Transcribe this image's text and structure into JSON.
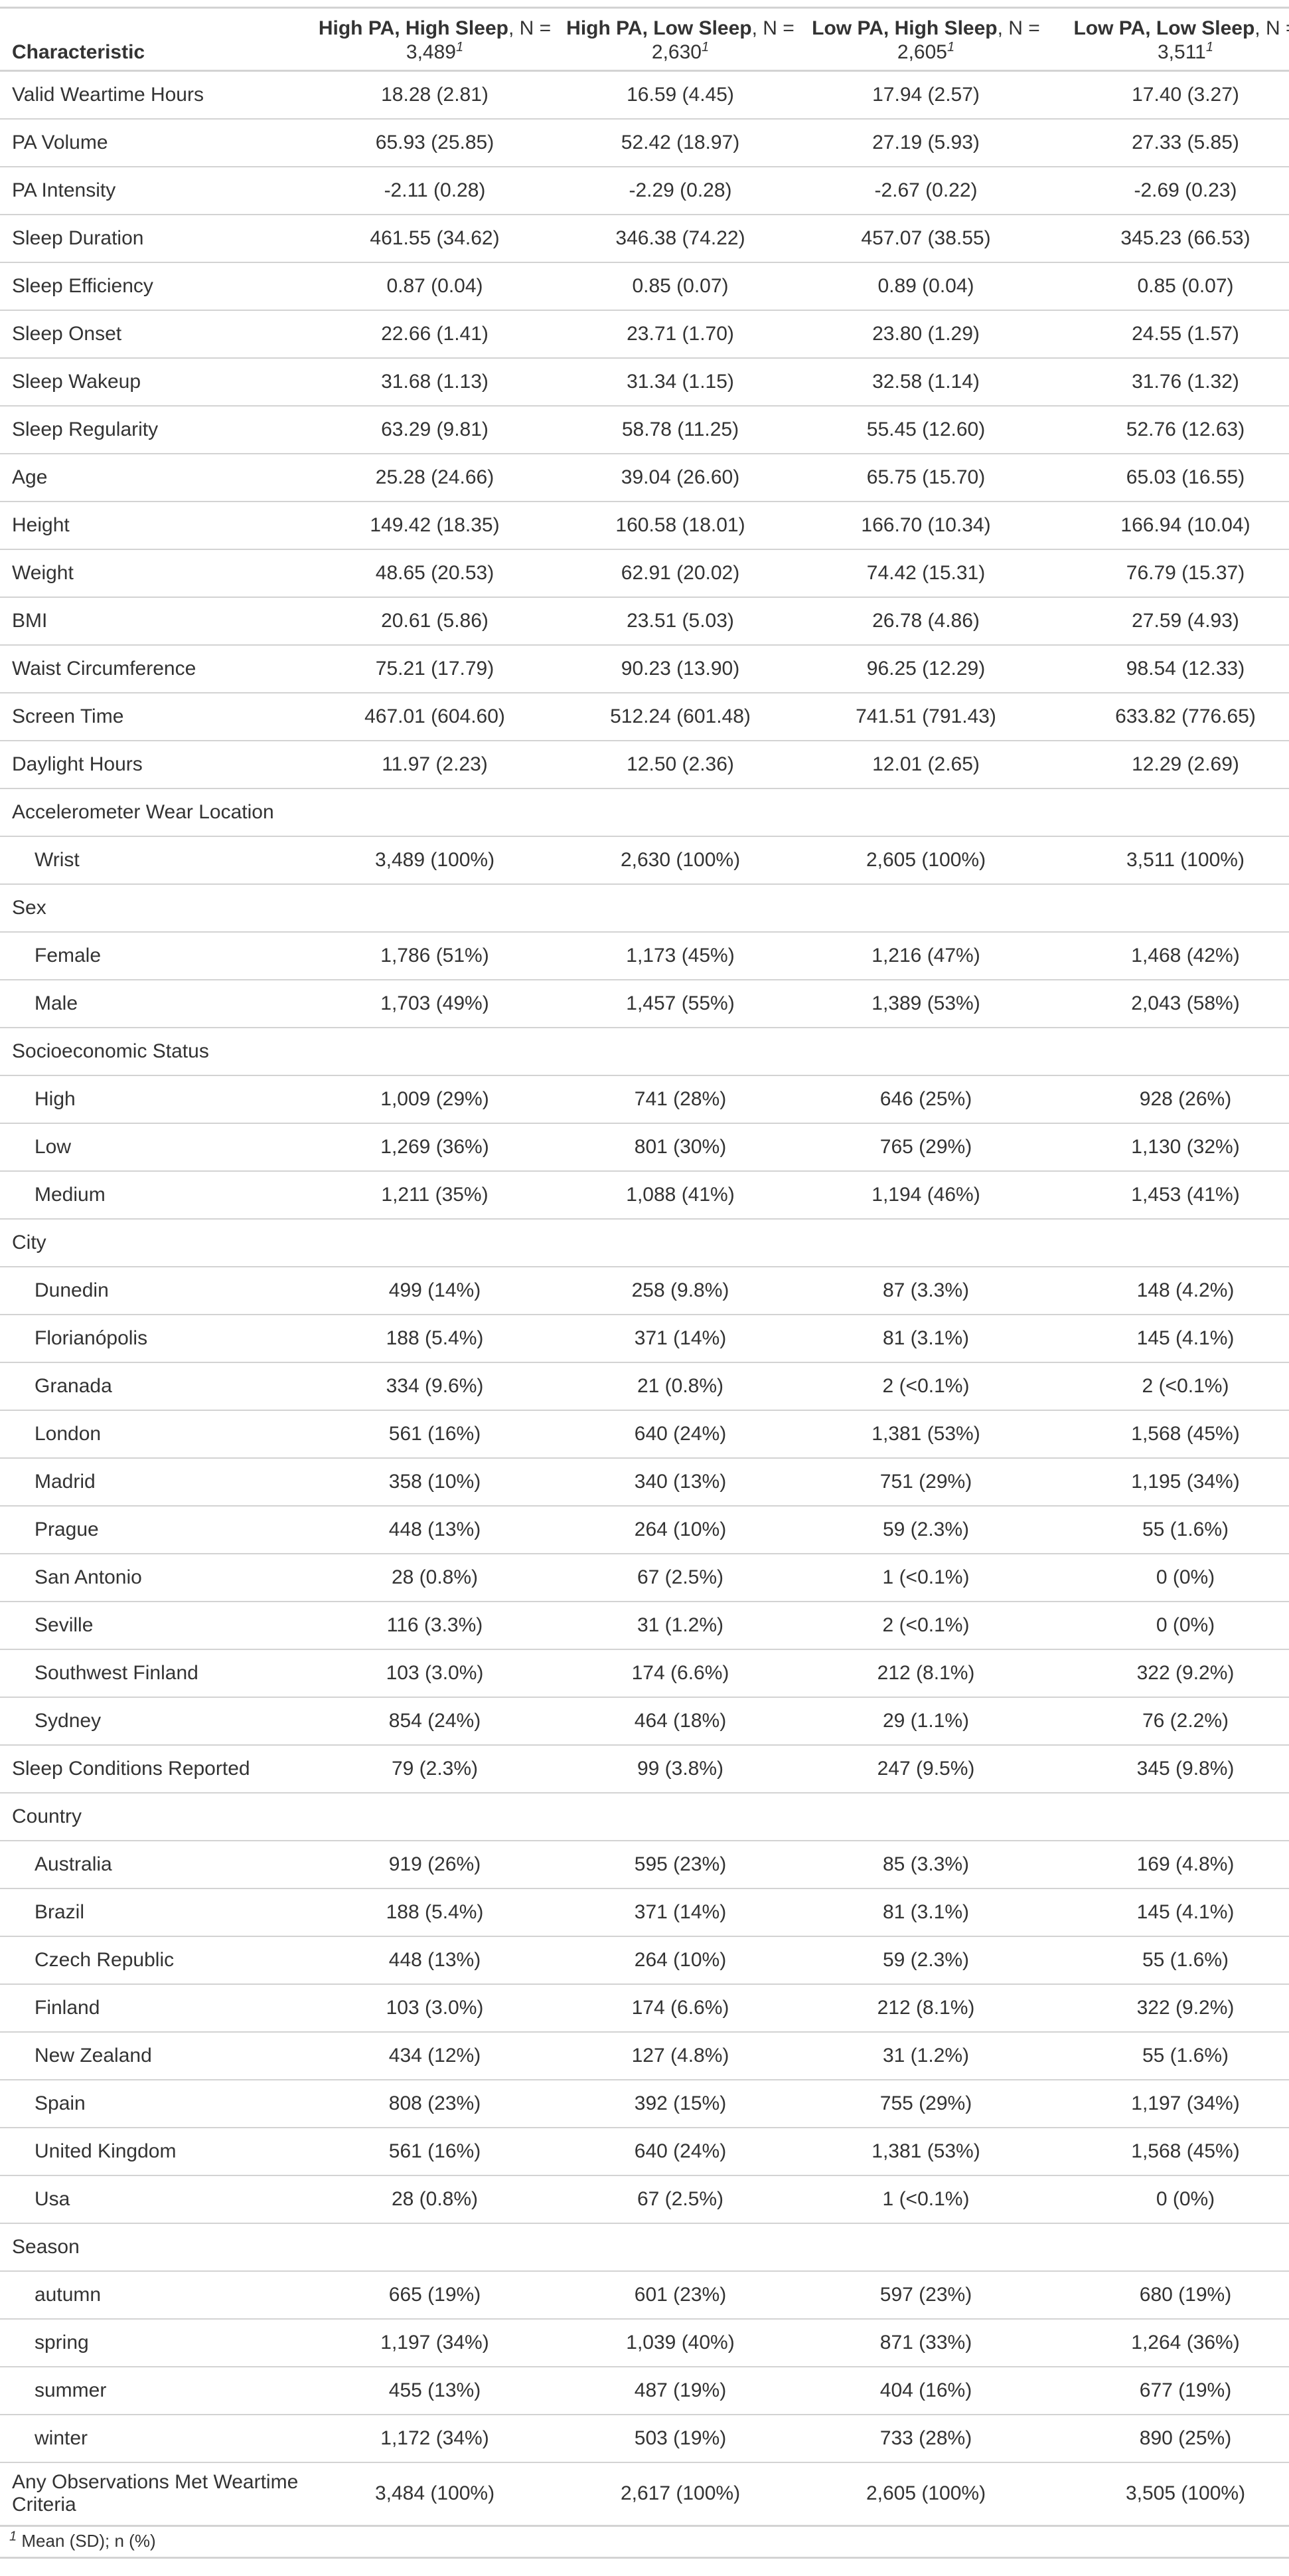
{
  "header": {
    "characteristic": "Characteristic",
    "groups": [
      {
        "label": "High PA, High Sleep",
        "n_text": ", N = 3,489",
        "mark": "1"
      },
      {
        "label": "High PA, Low Sleep",
        "n_text": ", N = 2,630",
        "mark": "1"
      },
      {
        "label": "Low PA, High Sleep",
        "n_text": ", N = 2,605",
        "mark": "1"
      },
      {
        "label": "Low PA, Low Sleep",
        "n_text": ", N = 3,511",
        "mark": "1"
      }
    ]
  },
  "rows": [
    {
      "label": "Valid Weartime Hours",
      "values": [
        "18.28 (2.81)",
        "16.59 (4.45)",
        "17.94 (2.57)",
        "17.40 (3.27)"
      ]
    },
    {
      "label": "PA Volume",
      "values": [
        "65.93 (25.85)",
        "52.42 (18.97)",
        "27.19 (5.93)",
        "27.33 (5.85)"
      ]
    },
    {
      "label": "PA Intensity",
      "values": [
        "-2.11 (0.28)",
        "-2.29 (0.28)",
        "-2.67 (0.22)",
        "-2.69 (0.23)"
      ]
    },
    {
      "label": "Sleep Duration",
      "values": [
        "461.55 (34.62)",
        "346.38 (74.22)",
        "457.07 (38.55)",
        "345.23 (66.53)"
      ]
    },
    {
      "label": "Sleep Efficiency",
      "values": [
        "0.87 (0.04)",
        "0.85 (0.07)",
        "0.89 (0.04)",
        "0.85 (0.07)"
      ]
    },
    {
      "label": "Sleep Onset",
      "values": [
        "22.66 (1.41)",
        "23.71 (1.70)",
        "23.80 (1.29)",
        "24.55 (1.57)"
      ]
    },
    {
      "label": "Sleep Wakeup",
      "values": [
        "31.68 (1.13)",
        "31.34 (1.15)",
        "32.58 (1.14)",
        "31.76 (1.32)"
      ]
    },
    {
      "label": "Sleep Regularity",
      "values": [
        "63.29 (9.81)",
        "58.78 (11.25)",
        "55.45 (12.60)",
        "52.76 (12.63)"
      ]
    },
    {
      "label": "Age",
      "values": [
        "25.28 (24.66)",
        "39.04 (26.60)",
        "65.75 (15.70)",
        "65.03 (16.55)"
      ]
    },
    {
      "label": "Height",
      "values": [
        "149.42 (18.35)",
        "160.58 (18.01)",
        "166.70 (10.34)",
        "166.94 (10.04)"
      ]
    },
    {
      "label": "Weight",
      "values": [
        "48.65 (20.53)",
        "62.91 (20.02)",
        "74.42 (15.31)",
        "76.79 (15.37)"
      ]
    },
    {
      "label": "BMI",
      "values": [
        "20.61 (5.86)",
        "23.51 (5.03)",
        "26.78 (4.86)",
        "27.59 (4.93)"
      ]
    },
    {
      "label": "Waist Circumference",
      "values": [
        "75.21 (17.79)",
        "90.23 (13.90)",
        "96.25 (12.29)",
        "98.54 (12.33)"
      ]
    },
    {
      "label": "Screen Time",
      "values": [
        "467.01 (604.60)",
        "512.24 (601.48)",
        "741.51 (791.43)",
        "633.82 (776.65)"
      ]
    },
    {
      "label": "Daylight Hours",
      "values": [
        "11.97 (2.23)",
        "12.50 (2.36)",
        "12.01 (2.65)",
        "12.29 (2.69)"
      ]
    },
    {
      "label": "Accelerometer Wear Location",
      "values": [
        "",
        "",
        "",
        ""
      ]
    },
    {
      "label": "Wrist",
      "sub": true,
      "values": [
        "3,489 (100%)",
        "2,630 (100%)",
        "2,605 (100%)",
        "3,511 (100%)"
      ]
    },
    {
      "label": "Sex",
      "values": [
        "",
        "",
        "",
        ""
      ]
    },
    {
      "label": "Female",
      "sub": true,
      "values": [
        "1,786 (51%)",
        "1,173 (45%)",
        "1,216 (47%)",
        "1,468 (42%)"
      ]
    },
    {
      "label": "Male",
      "sub": true,
      "values": [
        "1,703 (49%)",
        "1,457 (55%)",
        "1,389 (53%)",
        "2,043 (58%)"
      ]
    },
    {
      "label": "Socioeconomic Status",
      "values": [
        "",
        "",
        "",
        ""
      ]
    },
    {
      "label": "High",
      "sub": true,
      "values": [
        "1,009 (29%)",
        "741 (28%)",
        "646 (25%)",
        "928 (26%)"
      ]
    },
    {
      "label": "Low",
      "sub": true,
      "values": [
        "1,269 (36%)",
        "801 (30%)",
        "765 (29%)",
        "1,130 (32%)"
      ]
    },
    {
      "label": "Medium",
      "sub": true,
      "values": [
        "1,211 (35%)",
        "1,088 (41%)",
        "1,194 (46%)",
        "1,453 (41%)"
      ]
    },
    {
      "label": "City",
      "values": [
        "",
        "",
        "",
        ""
      ]
    },
    {
      "label": "Dunedin",
      "sub": true,
      "values": [
        "499 (14%)",
        "258 (9.8%)",
        "87 (3.3%)",
        "148 (4.2%)"
      ]
    },
    {
      "label": "Florianópolis",
      "sub": true,
      "values": [
        "188 (5.4%)",
        "371 (14%)",
        "81 (3.1%)",
        "145 (4.1%)"
      ]
    },
    {
      "label": "Granada",
      "sub": true,
      "values": [
        "334 (9.6%)",
        "21 (0.8%)",
        "2 (<0.1%)",
        "2 (<0.1%)"
      ]
    },
    {
      "label": "London",
      "sub": true,
      "values": [
        "561 (16%)",
        "640 (24%)",
        "1,381 (53%)",
        "1,568 (45%)"
      ]
    },
    {
      "label": "Madrid",
      "sub": true,
      "values": [
        "358 (10%)",
        "340 (13%)",
        "751 (29%)",
        "1,195 (34%)"
      ]
    },
    {
      "label": "Prague",
      "sub": true,
      "values": [
        "448 (13%)",
        "264 (10%)",
        "59 (2.3%)",
        "55 (1.6%)"
      ]
    },
    {
      "label": "San Antonio",
      "sub": true,
      "values": [
        "28 (0.8%)",
        "67 (2.5%)",
        "1 (<0.1%)",
        "0 (0%)"
      ]
    },
    {
      "label": "Seville",
      "sub": true,
      "values": [
        "116 (3.3%)",
        "31 (1.2%)",
        "2 (<0.1%)",
        "0 (0%)"
      ]
    },
    {
      "label": "Southwest Finland",
      "sub": true,
      "values": [
        "103 (3.0%)",
        "174 (6.6%)",
        "212 (8.1%)",
        "322 (9.2%)"
      ]
    },
    {
      "label": "Sydney",
      "sub": true,
      "values": [
        "854 (24%)",
        "464 (18%)",
        "29 (1.1%)",
        "76 (2.2%)"
      ]
    },
    {
      "label": "Sleep Conditions Reported",
      "values": [
        "79 (2.3%)",
        "99 (3.8%)",
        "247 (9.5%)",
        "345 (9.8%)"
      ]
    },
    {
      "label": "Country",
      "values": [
        "",
        "",
        "",
        ""
      ]
    },
    {
      "label": "Australia",
      "sub": true,
      "values": [
        "919 (26%)",
        "595 (23%)",
        "85 (3.3%)",
        "169 (4.8%)"
      ]
    },
    {
      "label": "Brazil",
      "sub": true,
      "values": [
        "188 (5.4%)",
        "371 (14%)",
        "81 (3.1%)",
        "145 (4.1%)"
      ]
    },
    {
      "label": "Czech Republic",
      "sub": true,
      "values": [
        "448 (13%)",
        "264 (10%)",
        "59 (2.3%)",
        "55 (1.6%)"
      ]
    },
    {
      "label": "Finland",
      "sub": true,
      "values": [
        "103 (3.0%)",
        "174 (6.6%)",
        "212 (8.1%)",
        "322 (9.2%)"
      ]
    },
    {
      "label": "New Zealand",
      "sub": true,
      "values": [
        "434 (12%)",
        "127 (4.8%)",
        "31 (1.2%)",
        "55 (1.6%)"
      ]
    },
    {
      "label": "Spain",
      "sub": true,
      "values": [
        "808 (23%)",
        "392 (15%)",
        "755 (29%)",
        "1,197 (34%)"
      ]
    },
    {
      "label": "United Kingdom",
      "sub": true,
      "values": [
        "561 (16%)",
        "640 (24%)",
        "1,381 (53%)",
        "1,568 (45%)"
      ]
    },
    {
      "label": "Usa",
      "sub": true,
      "values": [
        "28 (0.8%)",
        "67 (2.5%)",
        "1 (<0.1%)",
        "0 (0%)"
      ]
    },
    {
      "label": "Season",
      "values": [
        "",
        "",
        "",
        ""
      ]
    },
    {
      "label": "autumn",
      "sub": true,
      "values": [
        "665 (19%)",
        "601 (23%)",
        "597 (23%)",
        "680 (19%)"
      ]
    },
    {
      "label": "spring",
      "sub": true,
      "values": [
        "1,197 (34%)",
        "1,039 (40%)",
        "871 (33%)",
        "1,264 (36%)"
      ]
    },
    {
      "label": "summer",
      "sub": true,
      "values": [
        "455 (13%)",
        "487 (19%)",
        "404 (16%)",
        "677 (19%)"
      ]
    },
    {
      "label": "winter",
      "sub": true,
      "values": [
        "1,172 (34%)",
        "503 (19%)",
        "733 (28%)",
        "890 (25%)"
      ]
    },
    {
      "label": "Any Observations Met Weartime Criteria",
      "tall": true,
      "values": [
        "3,484 (100%)",
        "2,617 (100%)",
        "2,605 (100%)",
        "3,505 (100%)"
      ]
    }
  ],
  "footnote": {
    "mark": "1",
    "text": "Mean (SD); n (%)"
  }
}
